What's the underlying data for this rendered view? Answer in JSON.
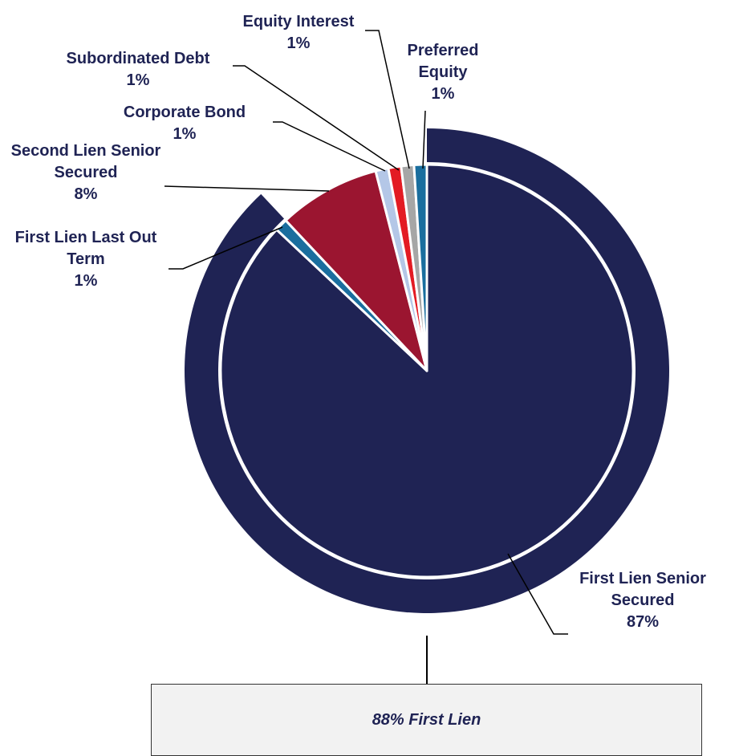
{
  "chart_data": {
    "type": "pie",
    "categories": [
      "First Lien Senior Secured",
      "First Lien Last Out Term",
      "Second Lien Senior Secured",
      "Corporate Bond",
      "Subordinated Debt",
      "Equity Interest",
      "Preferred Equity"
    ],
    "values": [
      87,
      1,
      8,
      1,
      1,
      1,
      1
    ],
    "value_labels": [
      "87%",
      "1%",
      "8%",
      "1%",
      "1%",
      "1%",
      "1%"
    ],
    "colors": [
      "#1f2354",
      "#1a6e9e",
      "#9b1530",
      "#b4c7e7",
      "#e31b23",
      "#a6a6a6",
      "#1a6e9e"
    ],
    "annotation": "88% First Lien"
  }
}
